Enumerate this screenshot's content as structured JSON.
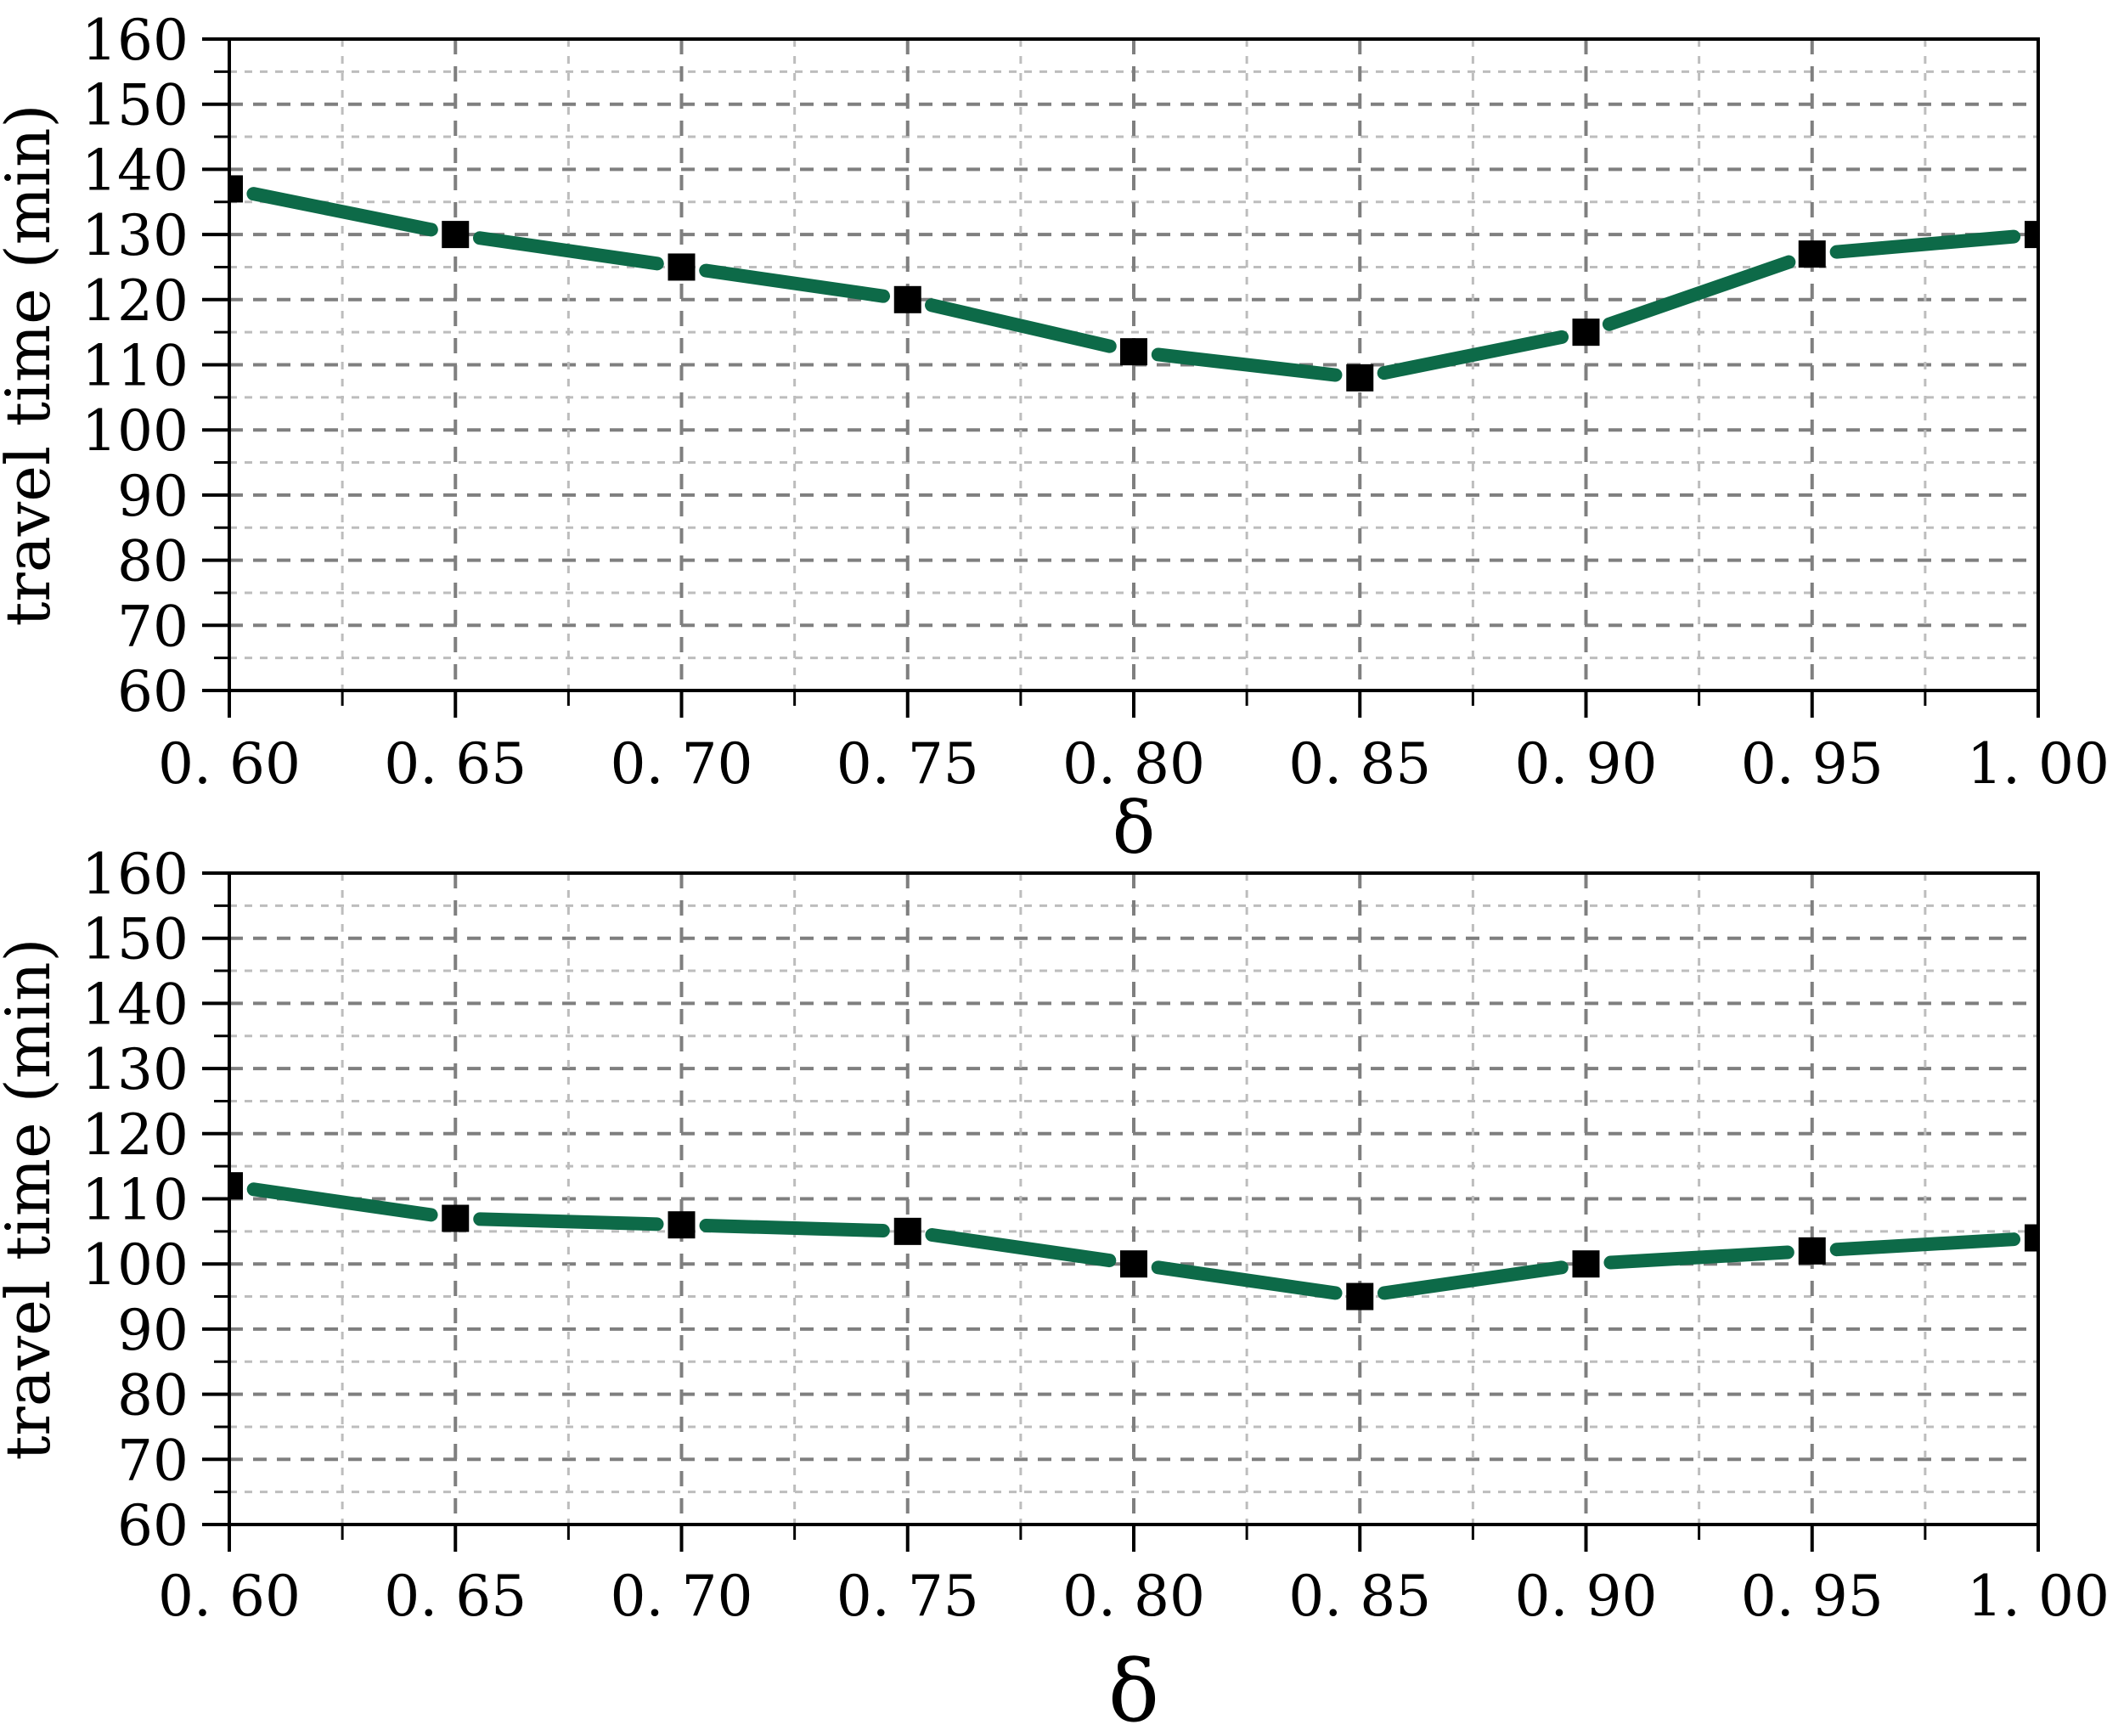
{
  "figure": {
    "background": "#ffffff"
  },
  "colors": {
    "major_grid": "#7f7f7f",
    "minor_grid": "#bdbdbd",
    "axis": "#000000",
    "text": "#000000"
  },
  "chart_data": [
    {
      "type": "line",
      "title": "",
      "xlabel": "δ",
      "ylabel": "travel time (min)",
      "x": [
        0.6,
        0.65,
        0.7,
        0.75,
        0.8,
        0.85,
        0.9,
        0.95,
        1.0
      ],
      "values": [
        137,
        130,
        125,
        120,
        112,
        108,
        115,
        127,
        130
      ],
      "xlim": [
        0.6,
        1.0
      ],
      "ylim": [
        60,
        160
      ],
      "x_major_step": 0.05,
      "x_minor_step": 0.025,
      "y_major_step": 10,
      "y_minor_step": 5,
      "x_tick_labels": [
        "0. 60",
        "0. 65",
        "0. 70",
        "0. 75",
        "0. 80",
        "0. 85",
        "0. 90",
        "0. 95",
        "1. 00"
      ],
      "y_tick_labels": [
        "60",
        "70",
        "80",
        "90",
        "100",
        "110",
        "120",
        "130",
        "140",
        "150",
        "160"
      ],
      "grid": true,
      "legend": null,
      "line_color": "#0d6a48",
      "marker": "filled-square",
      "marker_color": "#000000"
    },
    {
      "type": "line",
      "title": "",
      "xlabel": "δ",
      "ylabel": "travel time (min)",
      "x": [
        0.6,
        0.65,
        0.7,
        0.75,
        0.8,
        0.85,
        0.9,
        0.95,
        1.0
      ],
      "values": [
        112,
        107,
        106,
        105,
        100,
        95,
        100,
        102,
        104
      ],
      "xlim": [
        0.6,
        1.0
      ],
      "ylim": [
        60,
        160
      ],
      "x_major_step": 0.05,
      "x_minor_step": 0.025,
      "y_major_step": 10,
      "y_minor_step": 5,
      "x_tick_labels": [
        "0. 60",
        "0. 65",
        "0. 70",
        "0. 75",
        "0. 80",
        "0. 85",
        "0. 90",
        "0. 95",
        "1. 00"
      ],
      "y_tick_labels": [
        "60",
        "70",
        "80",
        "90",
        "100",
        "110",
        "120",
        "130",
        "140",
        "150",
        "160"
      ],
      "grid": true,
      "legend": null,
      "line_color": "#0d6a48",
      "marker": "filled-square",
      "marker_color": "#000000"
    }
  ]
}
